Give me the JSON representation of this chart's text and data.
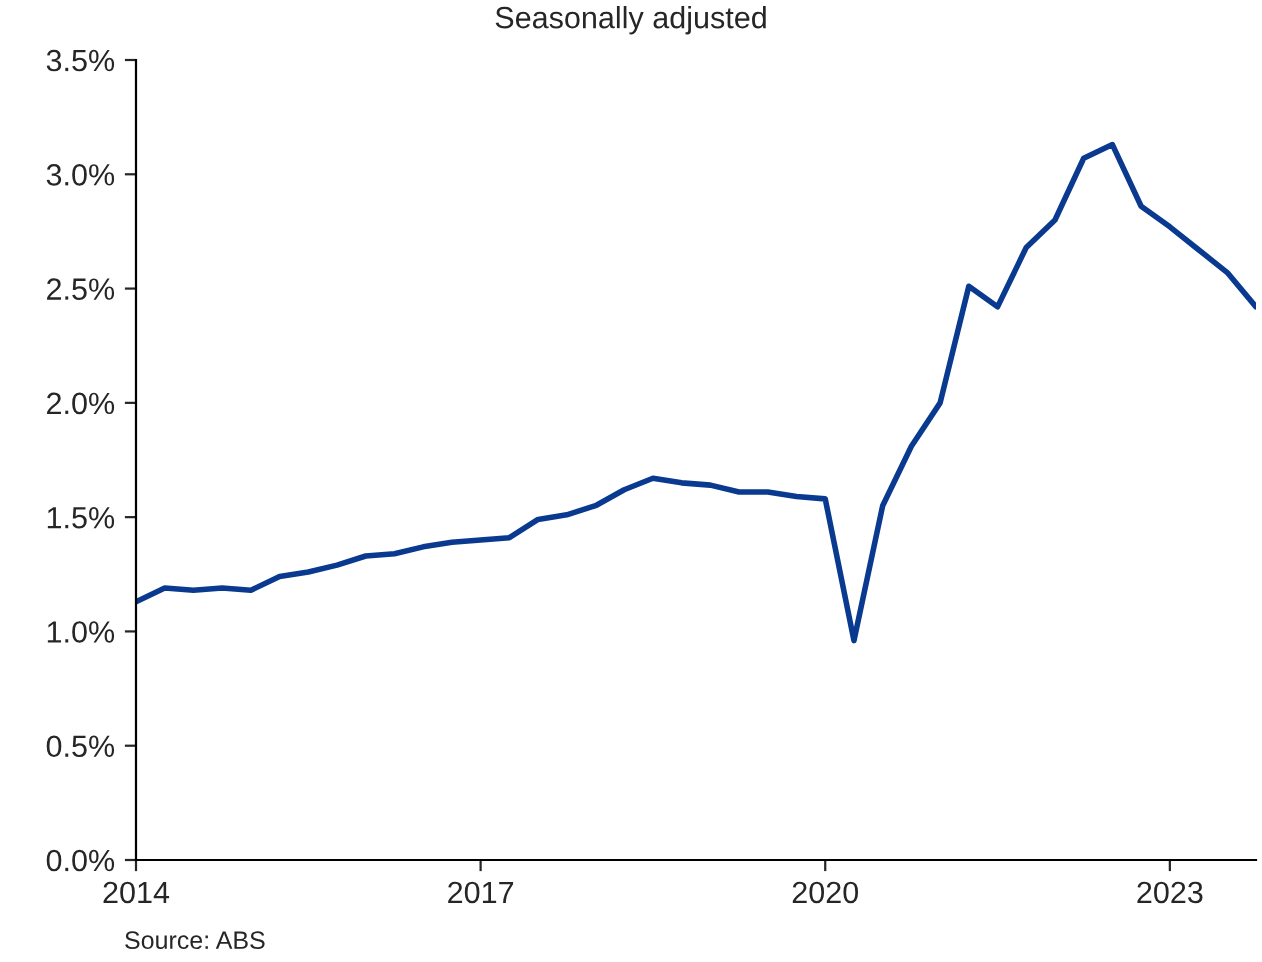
{
  "chart_data": {
    "type": "line",
    "title": "Seasonally adjusted",
    "x": [
      2014,
      2014.25,
      2014.5,
      2014.75,
      2015,
      2015.25,
      2015.5,
      2015.75,
      2016,
      2016.25,
      2016.5,
      2016.75,
      2017,
      2017.25,
      2017.5,
      2017.75,
      2018,
      2018.25,
      2018.5,
      2018.75,
      2019,
      2019.25,
      2019.5,
      2019.75,
      2020,
      2020.25,
      2020.5,
      2020.75,
      2021,
      2021.25,
      2021.5,
      2021.75,
      2022,
      2022.25,
      2022.5,
      2022.75,
      2023,
      2023.25,
      2023.5,
      2023.75
    ],
    "series": [
      {
        "color": "#0a3a8f",
        "values": [
          1.13,
          1.19,
          1.18,
          1.19,
          1.18,
          1.24,
          1.26,
          1.29,
          1.33,
          1.34,
          1.37,
          1.39,
          1.4,
          1.41,
          1.49,
          1.51,
          1.55,
          1.62,
          1.67,
          1.65,
          1.64,
          1.61,
          1.61,
          1.59,
          1.58,
          0.96,
          1.55,
          1.81,
          2.0,
          2.51,
          2.42,
          2.68,
          2.8,
          3.07,
          3.13,
          2.86,
          2.77,
          2.67,
          2.57,
          2.42
        ]
      }
    ],
    "xlim": [
      2014,
      2023.75
    ],
    "xticks": [
      2014,
      2017,
      2020,
      2023
    ],
    "ylim": [
      0,
      3.5
    ],
    "yticks": [
      {
        "value": 0,
        "label": "0.0%"
      },
      {
        "value": 0.5,
        "label": "0.5%"
      },
      {
        "value": 1,
        "label": "1.0%"
      },
      {
        "value": 1.5,
        "label": "1.5%"
      },
      {
        "value": 2,
        "label": "2.0%"
      },
      {
        "value": 2.5,
        "label": "2.5%"
      },
      {
        "value": 3,
        "label": "3.0%"
      },
      {
        "value": 3.5,
        "label": "3.5%"
      }
    ],
    "grid": false,
    "legend": false,
    "marker": "none",
    "line_style": "solid",
    "annotations": [
      "Source: ABS"
    ]
  }
}
